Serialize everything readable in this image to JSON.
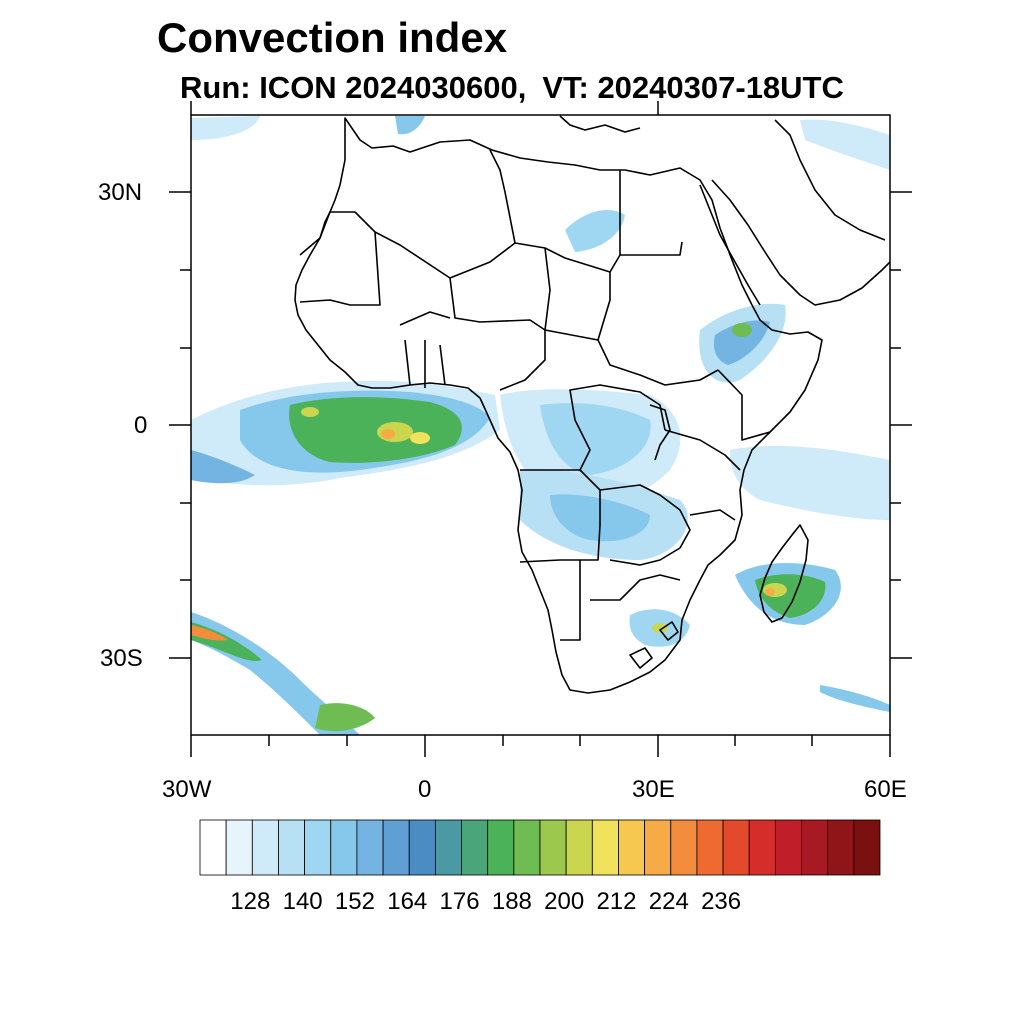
{
  "title": "Convection index",
  "subtitle": {
    "run_label": "Run: ICON 2024030600,",
    "vt_label": "VT: 20240307-18UTC"
  },
  "map": {
    "region": "Africa",
    "lon_range": [
      -30,
      60
    ],
    "lat_range": [
      -40,
      40
    ],
    "lon_tick_labels": [
      "30W",
      "0",
      "30E",
      "60E"
    ],
    "lat_tick_labels": [
      "30N",
      "0",
      "30S"
    ]
  },
  "colorbar": {
    "colors": [
      "#ffffff",
      "#e6f4fc",
      "#cfeaf8",
      "#b8e0f5",
      "#9fd6f2",
      "#86c8ec",
      "#74b4e2",
      "#5f9fd3",
      "#4b8cc2",
      "#4b9aa3",
      "#4aa57a",
      "#4bb259",
      "#6fbd52",
      "#9bc84d",
      "#cbd64f",
      "#f0e25a",
      "#f7c850",
      "#f7ab47",
      "#f48c3d",
      "#ee6a31",
      "#e24a2b",
      "#d42d2a",
      "#c01f2a",
      "#a71a24",
      "#8f1519",
      "#7a1010"
    ],
    "tick_labels": [
      "128",
      "140",
      "152",
      "164",
      "176",
      "188",
      "200",
      "212",
      "224",
      "236"
    ]
  }
}
